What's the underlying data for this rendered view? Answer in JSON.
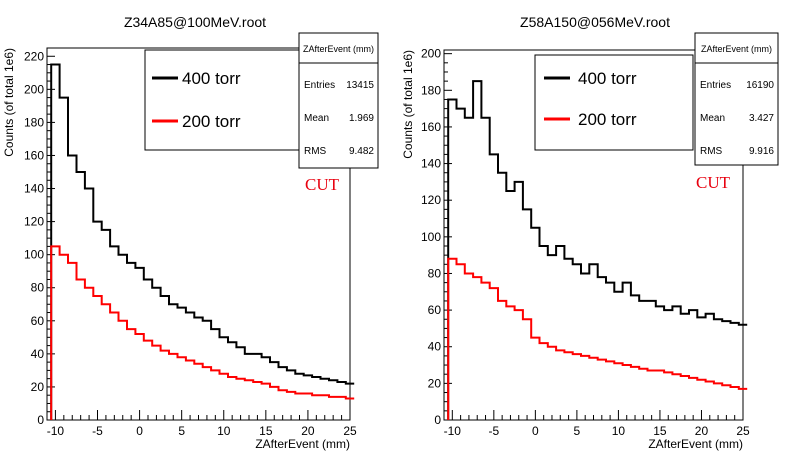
{
  "chart_data": [
    {
      "type": "line",
      "title": "Z34A85@100MeV.root",
      "xlabel": "ZAfterEvent (mm)",
      "ylabel": "Counts (of total 1e6)",
      "xlim": [
        -11,
        25
      ],
      "ylim": [
        0,
        225
      ],
      "x_ticks": [
        -10,
        -5,
        0,
        5,
        10,
        15,
        20,
        25
      ],
      "y_ticks": [
        0,
        20,
        40,
        60,
        80,
        100,
        120,
        140,
        160,
        180,
        200,
        220
      ],
      "series": [
        {
          "name": "400 torr",
          "color": "#000000",
          "x": [
            -10,
            -9,
            -8,
            -7,
            -6,
            -5,
            -4,
            -3,
            -2,
            -1,
            0,
            1,
            2,
            3,
            4,
            5,
            6,
            7,
            8,
            9,
            10,
            11,
            12,
            13,
            14,
            15,
            16,
            17,
            18,
            19,
            20,
            21,
            22,
            23,
            24,
            25
          ],
          "values": [
            215,
            195,
            160,
            150,
            140,
            120,
            115,
            105,
            100,
            95,
            92,
            85,
            80,
            75,
            70,
            68,
            65,
            62,
            60,
            55,
            50,
            47,
            44,
            40,
            40,
            38,
            35,
            32,
            30,
            28,
            27,
            26,
            25,
            24,
            23,
            22
          ]
        },
        {
          "name": "200 torr",
          "color": "#ff0000",
          "x": [
            -10,
            -9,
            -8,
            -7,
            -6,
            -5,
            -4,
            -3,
            -2,
            -1,
            0,
            1,
            2,
            3,
            4,
            5,
            6,
            7,
            8,
            9,
            10,
            11,
            12,
            13,
            14,
            15,
            16,
            17,
            18,
            19,
            20,
            21,
            22,
            23,
            24,
            25
          ],
          "values": [
            105,
            100,
            95,
            85,
            80,
            75,
            70,
            65,
            60,
            55,
            52,
            48,
            45,
            42,
            40,
            38,
            36,
            34,
            32,
            30,
            28,
            26,
            25,
            24,
            23,
            22,
            20,
            18,
            17,
            16,
            16,
            15,
            15,
            14,
            14,
            13
          ]
        }
      ],
      "legend": {
        "entries": [
          "400 torr",
          "200 torr"
        ],
        "placement": "top-right"
      },
      "stats": {
        "title": "ZAfterEvent (mm)",
        "rows": [
          [
            "Entries",
            "13415"
          ],
          [
            "Mean",
            "1.969"
          ],
          [
            "RMS",
            "9.482"
          ]
        ]
      },
      "annotation": "CUT"
    },
    {
      "type": "line",
      "title": "Z58A150@056MeV.root",
      "xlabel": "ZAfterEvent (mm)",
      "ylabel": "Counts (of total 1e6)",
      "xlim": [
        -11,
        25
      ],
      "ylim": [
        0,
        202
      ],
      "x_ticks": [
        -10,
        -5,
        0,
        5,
        10,
        15,
        20,
        25
      ],
      "y_ticks": [
        0,
        20,
        40,
        60,
        80,
        100,
        120,
        140,
        160,
        180,
        200
      ],
      "series": [
        {
          "name": "400 torr",
          "color": "#000000",
          "x": [
            -10,
            -9,
            -8,
            -7,
            -6,
            -5,
            -4,
            -3,
            -2,
            -1,
            0,
            1,
            2,
            3,
            4,
            5,
            6,
            7,
            8,
            9,
            10,
            11,
            12,
            13,
            14,
            15,
            16,
            17,
            18,
            19,
            20,
            21,
            22,
            23,
            24,
            25
          ],
          "values": [
            175,
            170,
            165,
            185,
            165,
            145,
            135,
            125,
            130,
            115,
            105,
            95,
            90,
            95,
            88,
            85,
            80,
            85,
            78,
            75,
            70,
            75,
            68,
            65,
            65,
            62,
            60,
            62,
            58,
            60,
            56,
            58,
            55,
            54,
            53,
            52
          ]
        },
        {
          "name": "200 torr",
          "color": "#ff0000",
          "x": [
            -10,
            -9,
            -8,
            -7,
            -6,
            -5,
            -4,
            -3,
            -2,
            -1,
            0,
            1,
            2,
            3,
            4,
            5,
            6,
            7,
            8,
            9,
            10,
            11,
            12,
            13,
            14,
            15,
            16,
            17,
            18,
            19,
            20,
            21,
            22,
            23,
            24,
            25
          ],
          "values": [
            88,
            85,
            80,
            78,
            75,
            72,
            65,
            62,
            60,
            55,
            45,
            42,
            40,
            38,
            37,
            36,
            35,
            34,
            33,
            32,
            31,
            30,
            29,
            28,
            27,
            27,
            26,
            25,
            24,
            23,
            22,
            21,
            20,
            19,
            18,
            17
          ]
        }
      ],
      "legend": {
        "entries": [
          "400 torr",
          "200 torr"
        ],
        "placement": "top-right"
      },
      "stats": {
        "title": "ZAfterEvent (mm)",
        "rows": [
          [
            "Entries",
            "16190"
          ],
          [
            "Mean",
            "3.427"
          ],
          [
            "RMS",
            "9.916"
          ]
        ]
      },
      "annotation": "CUT"
    }
  ]
}
